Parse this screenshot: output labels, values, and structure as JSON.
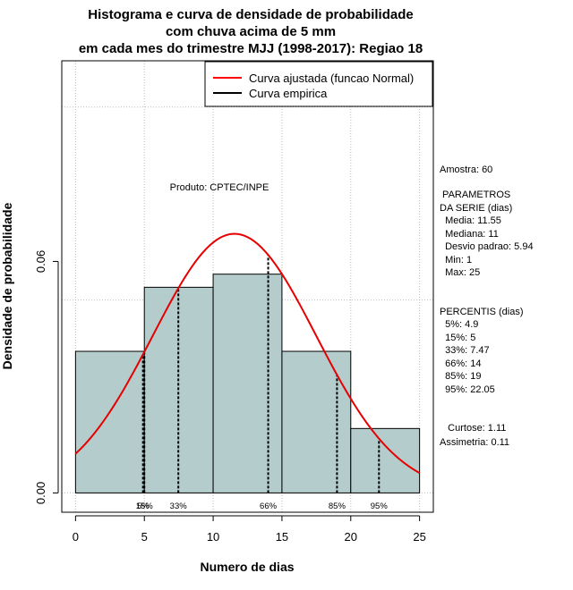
{
  "chart_data": {
    "type": "bar",
    "title_lines": [
      "Histograma e curva de densidade de probabilidade",
      "com chuva acima de 5 mm",
      "em cada mes do trimestre MJJ (1998-2017): Regiao 18"
    ],
    "xlabel": "Numero de dias",
    "ylabel": "Densidade de probabilidade",
    "xlim": [
      -1,
      26
    ],
    "ylim": [
      -0.005,
      0.112
    ],
    "x_ticks": [
      0,
      5,
      10,
      15,
      20,
      25
    ],
    "y_ticks": [
      0.0,
      0.06
    ],
    "y_tick_labels": [
      "0.00",
      "0.06"
    ],
    "grid_x": [
      0,
      5,
      10,
      15,
      20,
      25
    ],
    "grid_y": [
      0.0,
      0.05,
      0.1
    ],
    "bins": [
      {
        "x0": 0,
        "x1": 5,
        "density": 0.0367
      },
      {
        "x0": 5,
        "x1": 10,
        "density": 0.0533
      },
      {
        "x0": 10,
        "x1": 15,
        "density": 0.0567
      },
      {
        "x0": 15,
        "x1": 20,
        "density": 0.0367
      },
      {
        "x0": 20,
        "x1": 25,
        "density": 0.0167
      }
    ],
    "normal_fit": {
      "mean": 11.55,
      "sd": 5.94,
      "from": 0,
      "to": 25
    },
    "percentile_lines": [
      {
        "x": 4.9,
        "label": "5%"
      },
      {
        "x": 5,
        "label": "15%"
      },
      {
        "x": 7.47,
        "label": "33%"
      },
      {
        "x": 14,
        "label": "66%"
      },
      {
        "x": 19,
        "label": "85%"
      },
      {
        "x": 22.05,
        "label": "95%"
      }
    ],
    "legend": [
      {
        "label": "Curva ajustada (funcao Normal)",
        "color": "#ff0000"
      },
      {
        "label": "Curva empirica",
        "color": "#000000"
      }
    ],
    "legend_position": "top-right",
    "annotation": "Produto: CPTEC/INPE",
    "colors": {
      "bar_fill": "#b4cccc",
      "curve": "#e60000",
      "grid": "#bbbbbb"
    }
  },
  "stats_panel": {
    "lines": [
      "Amostra: 60",
      " PARAMETROS",
      "DA SERIE (dias)",
      "  Media: 11.55",
      "  Mediana: 11",
      "  Desvio padrao: 5.94",
      "  Min: 1",
      "  Max: 25",
      "PERCENTIS (dias)",
      "  5%: 4.9",
      "  15%: 5",
      "  33%: 7.47",
      "  66%: 14",
      "  85%: 19",
      "  95%: 22.05",
      "   Curtose: 1.11",
      "Assimetria: 0.11"
    ]
  }
}
